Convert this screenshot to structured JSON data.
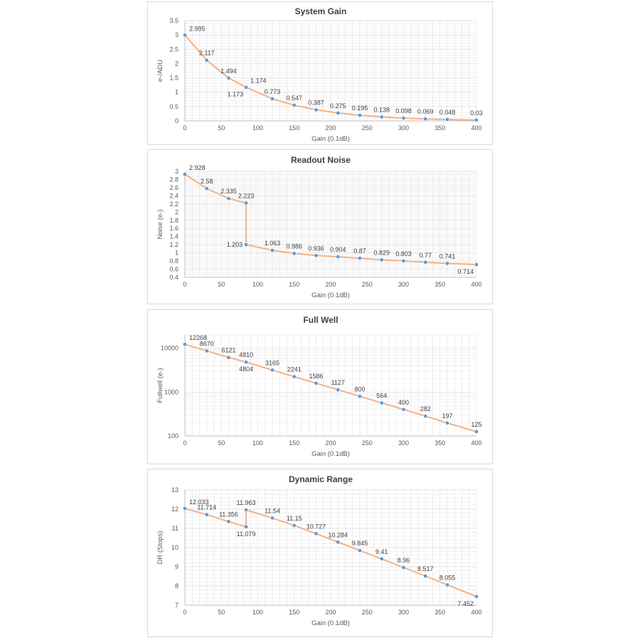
{
  "chart_data": [
    {
      "id": "gain",
      "type": "line",
      "title": "System Gain",
      "xlabel": "Gain (0.1dB)",
      "ylabel": "e-/ADU",
      "xlim": [
        0,
        400
      ],
      "ylim": [
        0,
        3.5
      ],
      "yscale": "linear",
      "grid": true,
      "xticks": [
        0,
        50,
        100,
        150,
        200,
        250,
        300,
        350,
        400
      ],
      "yticks": [
        0,
        0.5,
        1,
        1.5,
        2,
        2.5,
        3,
        3.5
      ],
      "ytick_labels": [
        "0",
        "0.5",
        "1",
        "1.5",
        "2",
        "2.5",
        "3",
        "3.5"
      ],
      "line_color": "#f4b183",
      "marker_color": "#5b9bd5",
      "x": [
        0,
        30,
        60,
        84,
        84,
        120,
        150,
        180,
        210,
        240,
        270,
        300,
        330,
        360,
        400
      ],
      "y": [
        2.995,
        2.117,
        1.494,
        1.174,
        1.173,
        0.773,
        0.547,
        0.387,
        0.275,
        0.195,
        0.138,
        0.098,
        0.069,
        0.048,
        0.03
      ],
      "data_labels": [
        "2.995",
        "2.117",
        "1.494",
        "1.174",
        "1.173",
        "0.773",
        "0.547",
        "0.387",
        "0.275",
        "0.195",
        "0.138",
        "0.098",
        "0.069",
        "0.048",
        "0.03"
      ],
      "label_pos": [
        "ar",
        "a",
        "a",
        "ar",
        "bl",
        "a",
        "a",
        "a",
        "a",
        "a",
        "a",
        "a",
        "a",
        "a",
        "a"
      ]
    },
    {
      "id": "noise",
      "type": "line",
      "title": "Readout Noise",
      "xlabel": "Gain (0.1dB)",
      "ylabel": "Noise (e-)",
      "xlim": [
        0,
        400
      ],
      "ylim": [
        0.4,
        3.0
      ],
      "yscale": "linear",
      "grid": true,
      "xticks": [
        0,
        50,
        100,
        150,
        200,
        250,
        300,
        350,
        400
      ],
      "yticks": [
        0.4,
        0.6,
        0.8,
        1,
        1.2,
        1.4,
        1.6,
        1.8,
        2,
        2.2,
        2.4,
        2.6,
        2.8,
        3
      ],
      "ytick_labels": [
        "0.4",
        "0.6",
        "0.8",
        "1",
        "1.2",
        "1.4",
        "1.6",
        "1.8",
        "2",
        "2.2",
        "2.4",
        "2.6",
        "2.8",
        "3"
      ],
      "line_color": "#f4b183",
      "marker_color": "#5b9bd5",
      "x": [
        0,
        30,
        60,
        84,
        84,
        120,
        150,
        180,
        210,
        240,
        270,
        300,
        330,
        360,
        400
      ],
      "y": [
        2.928,
        2.58,
        2.335,
        2.223,
        1.203,
        1.063,
        0.986,
        0.936,
        0.904,
        0.87,
        0.829,
        0.803,
        0.77,
        0.741,
        0.714
      ],
      "data_labels": [
        "2.928",
        "2.58",
        "2.335",
        "2.223",
        "1.203",
        "1.063",
        "0.986",
        "0.936",
        "0.904",
        "0.87",
        "0.829",
        "0.803",
        "0.77",
        "0.741",
        "0.714"
      ],
      "label_pos": [
        "ar",
        "a",
        "a",
        "a",
        "l",
        "a",
        "a",
        "a",
        "a",
        "a",
        "a",
        "a",
        "a",
        "a",
        "bl"
      ]
    },
    {
      "id": "fullwell",
      "type": "line",
      "title": "Full Well",
      "xlabel": "Gain (0.1dB)",
      "ylabel": "Fullwell (e-)",
      "xlim": [
        0,
        400
      ],
      "ylim": [
        100,
        20000
      ],
      "yscale": "log",
      "grid": true,
      "xticks": [
        0,
        50,
        100,
        150,
        200,
        250,
        300,
        350,
        400
      ],
      "yticks": [
        100,
        1000,
        10000
      ],
      "ytick_labels": [
        "100",
        "1000",
        "10000"
      ],
      "line_color": "#f4b183",
      "marker_color": "#5b9bd5",
      "x": [
        0,
        30,
        60,
        84,
        84,
        120,
        150,
        180,
        210,
        240,
        270,
        300,
        330,
        360,
        400
      ],
      "y": [
        12268,
        8670,
        6121,
        4810,
        4804,
        3165,
        2241,
        1586,
        1127,
        800,
        564,
        400,
        282,
        197,
        125
      ],
      "data_labels": [
        "12268",
        "8670",
        "6121",
        "4810",
        "4804",
        "3165",
        "2241",
        "1586",
        "1127",
        "800",
        "564",
        "400",
        "282",
        "197",
        "125"
      ],
      "label_pos": [
        "ar",
        "a",
        "a",
        "a",
        "b",
        "a",
        "a",
        "a",
        "a",
        "a",
        "a",
        "a",
        "a",
        "a",
        "a"
      ]
    },
    {
      "id": "dr",
      "type": "line",
      "title": "Dynamic Range",
      "xlabel": "Gain (0.1dB)",
      "ylabel": "DR (Stops)",
      "xlim": [
        0,
        400
      ],
      "ylim": [
        7,
        13
      ],
      "yscale": "linear",
      "grid": true,
      "xticks": [
        0,
        50,
        100,
        150,
        200,
        250,
        300,
        350,
        400
      ],
      "yticks": [
        7,
        8,
        9,
        10,
        11,
        12,
        13
      ],
      "ytick_labels": [
        "7",
        "8",
        "9",
        "10",
        "11",
        "12",
        "13"
      ],
      "line_color": "#f4b183",
      "marker_color": "#5b9bd5",
      "x": [
        0,
        30,
        60,
        84,
        84,
        120,
        150,
        180,
        210,
        240,
        270,
        300,
        330,
        360,
        400
      ],
      "y": [
        12.033,
        11.714,
        11.356,
        11.079,
        11.963,
        11.54,
        11.15,
        10.727,
        10.284,
        9.845,
        9.41,
        8.96,
        8.517,
        8.055,
        7.452
      ],
      "data_labels": [
        "12.033",
        "11.714",
        "11.356",
        "11.079",
        "11.963",
        "11.54",
        "11.15",
        "10.727",
        "10.284",
        "9.845",
        "9.41",
        "8.96",
        "8.517",
        "8.055",
        "7.452"
      ],
      "label_pos": [
        "ar",
        "a",
        "a",
        "b",
        "a",
        "a",
        "a",
        "a",
        "a",
        "a",
        "a",
        "a",
        "a",
        "a",
        "bl"
      ]
    }
  ]
}
